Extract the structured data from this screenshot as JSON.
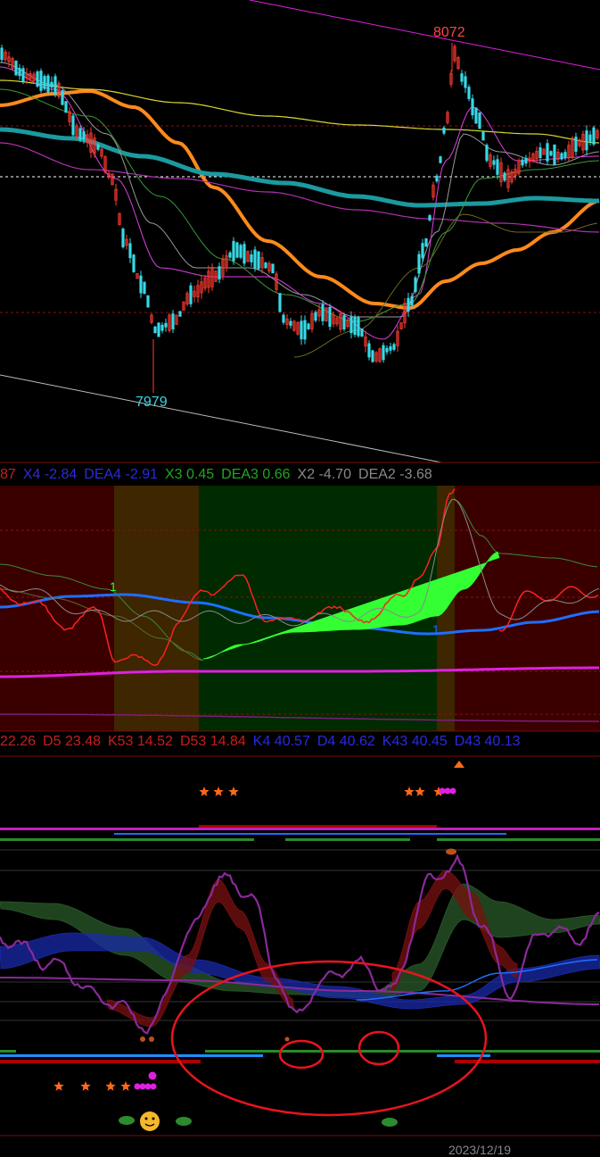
{
  "colors": {
    "background": "#000000",
    "candle_up": "#ff3b30",
    "candle_down": "#37d9e6",
    "ma_orange": "#ff8a1c",
    "ma_teal": "#1b9aa0",
    "macd_red": "#ff2020",
    "macd_green": "#33ff33",
    "macd_blue": "#1e6fff",
    "magenta": "#e020e0",
    "annotation_red": "#e8141e"
  },
  "price_panel": {
    "high_label": "8072",
    "low_label": "7979"
  },
  "macd_panel": {
    "readout": [
      {
        "text": "87",
        "color": "#c81e1e"
      },
      {
        "text": "X4 -2.84",
        "color": "#2a2ae0"
      },
      {
        "text": "DEA4 -2.91",
        "color": "#2a2ae0"
      },
      {
        "text": "X3 0.45",
        "color": "#1fa81f"
      },
      {
        "text": "DEA3 0.66",
        "color": "#1fa81f"
      },
      {
        "text": "X2 -4.70",
        "color": "#888888"
      },
      {
        "text": "DEA2 -3.68",
        "color": "#888888"
      }
    ],
    "signal_marks": [
      {
        "text": "1",
        "color": "#33ff33"
      },
      {
        "text": "1",
        "color": "#1e6fff"
      }
    ]
  },
  "kdj_panel": {
    "readout": [
      {
        "text": "22.26",
        "color": "#c81e1e"
      },
      {
        "text": "D5 23.48",
        "color": "#c81e1e"
      },
      {
        "text": "K53 14.52",
        "color": "#c81e1e"
      },
      {
        "text": "D53 14.84",
        "color": "#c81e1e"
      },
      {
        "text": "K4 40.57",
        "color": "#2a2ae0"
      },
      {
        "text": "D4 40.62",
        "color": "#2a2ae0"
      },
      {
        "text": "K43 40.45",
        "color": "#2a2ae0"
      },
      {
        "text": "D43 40.13",
        "color": "#2a2ae0"
      }
    ]
  },
  "x_axis": {
    "date_label": "2023/12/19"
  },
  "chart_data": {
    "type": "line",
    "title": "",
    "price_extremes": {
      "high": 8072,
      "low": 7979
    },
    "ylim": [
      7960,
      8095
    ]
  }
}
